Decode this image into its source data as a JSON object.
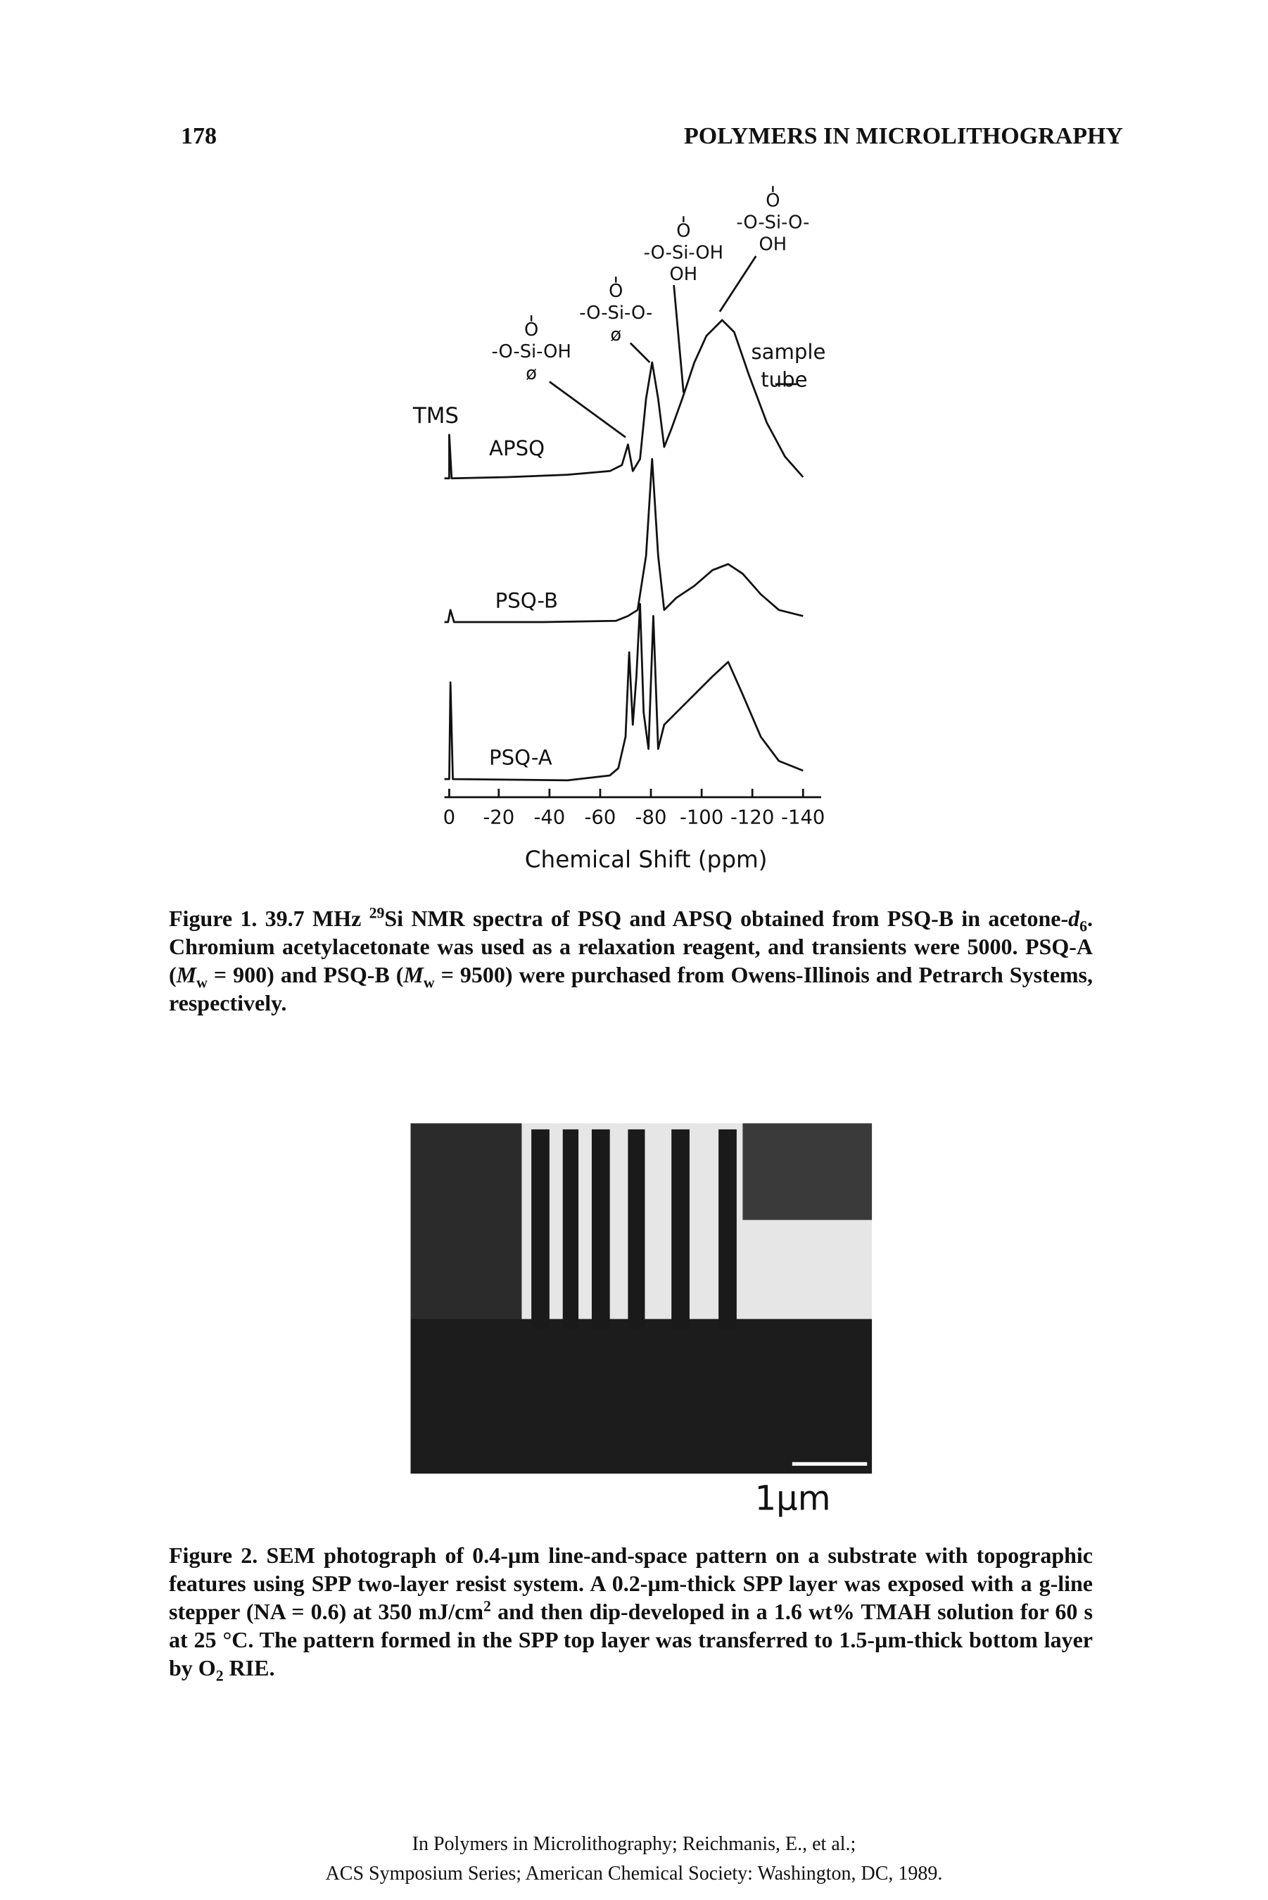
{
  "header": {
    "page_number": "178",
    "running_title": "POLYMERS IN MICROLITHOGRAPHY"
  },
  "figure1": {
    "peak_labels": {
      "tms": "TMS",
      "apsq": "APSQ",
      "psqb": "PSQ-B",
      "psqa": "PSQ-A",
      "sample_tube": [
        "sample",
        "tube"
      ]
    },
    "structures": [
      [
        "O",
        "-O-Si-OH",
        "ø"
      ],
      [
        "O",
        "-O-Si-O-",
        "ø"
      ],
      [
        "O",
        "-O-Si-OH",
        "OH"
      ],
      [
        "O",
        "-O-Si-O-",
        "OH"
      ]
    ],
    "axis": {
      "ticks": [
        "0",
        "-20",
        "-40",
        "-60",
        "-80",
        "-100",
        "-120",
        "-140"
      ],
      "label": "Chemical Shift (ppm)"
    },
    "caption": [
      "Figure 1.",
      " 39.7 MHz ",
      "29",
      "Si NMR spectra of PSQ and APSQ obtained from PSQ-B in acetone-",
      "d",
      "6",
      ". Chromium acetylacetonate was used as a relaxation reagent, and transients were 5000. PSQ-A (",
      "M",
      "w",
      " = 900) and PSQ-B (",
      "M",
      "w",
      " = 9500) were purchased from Owens-Illinois and Petrarch Systems, respectively."
    ]
  },
  "figure2": {
    "scale_bar": "1µm",
    "caption": [
      "Figure 2.",
      " SEM photograph of 0.4-µm line-and-space pattern on a substrate with topographic features using SPP two-layer resist system. A 0.2-µm-thick SPP layer was exposed with a g-line stepper (NA = 0.6) at 350 mJ/cm",
      "2",
      " and then dip-developed in a 1.6 wt% TMAH solution for 60 s at 25 °C. The pattern formed in the SPP top layer was transferred to 1.5-µm-thick bottom layer by O",
      "2",
      " RIE."
    ]
  },
  "footer": [
    "In Polymers in Microlithography; Reichmanis, E., et al.;",
    "ACS Symposium Series; American Chemical Society: Washington, DC, 1989."
  ]
}
